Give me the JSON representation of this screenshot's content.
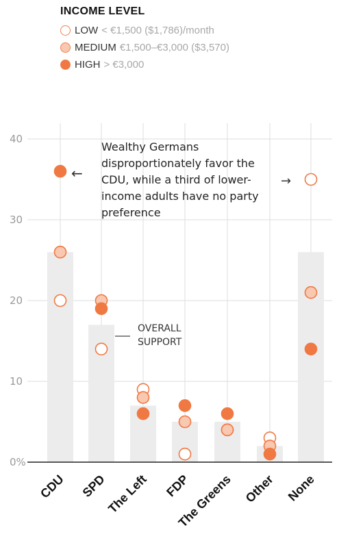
{
  "legend": {
    "title": "INCOME LEVEL",
    "items": [
      {
        "key": "low",
        "label": "LOW",
        "desc": "< €1,500 ($1,786)/month"
      },
      {
        "key": "medium",
        "label": "MEDIUM",
        "desc": "€1,500–€3,000 ($3,570)"
      },
      {
        "key": "high",
        "label": "HIGH",
        "desc": "> €3,000"
      }
    ]
  },
  "annotations": {
    "main": "Wealthy Germans disproportionately favor the CDU, while a third of lower-income adults have no party preference",
    "main_arrow_left": "←",
    "main_arrow_right": "→",
    "overall": "OVERALL SUPPORT"
  },
  "colors": {
    "accent": "#f07843",
    "medium_fill": "#f9c8b0",
    "bar": "#ececec",
    "grid": "#dedede",
    "axis": "#222222",
    "tick_text": "#999999"
  },
  "chart_data": {
    "type": "scatter",
    "categories": [
      "CDU",
      "SPD",
      "The Left",
      "FDP",
      "The Greens",
      "Other",
      "None"
    ],
    "yticks": [
      "0%",
      "10",
      "20",
      "30",
      "40"
    ],
    "ylim": [
      0,
      40
    ],
    "overall": [
      26,
      17,
      7,
      5,
      5,
      2,
      26
    ],
    "series": [
      {
        "name": "LOW",
        "values": [
          20,
          14,
          9,
          1,
          4,
          3,
          35
        ]
      },
      {
        "name": "MEDIUM",
        "values": [
          26,
          20,
          8,
          5,
          4,
          2,
          21
        ]
      },
      {
        "name": "HIGH",
        "values": [
          36,
          19,
          6,
          7,
          6,
          1,
          14
        ]
      }
    ]
  }
}
